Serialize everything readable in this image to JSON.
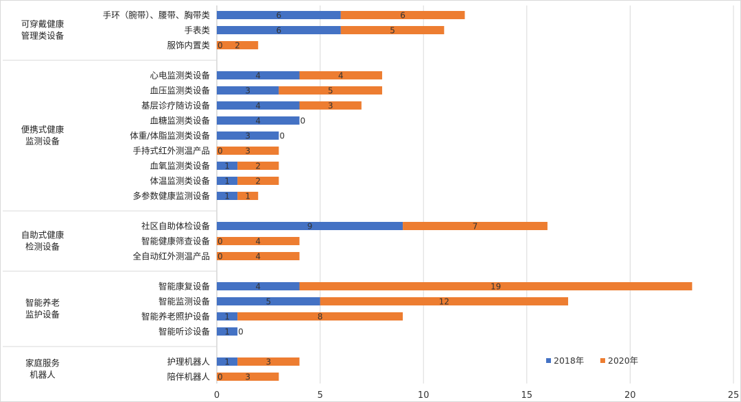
{
  "chart_data": {
    "type": "bar",
    "orientation": "horizontal",
    "stacked": true,
    "xlim": [
      0,
      25
    ],
    "x_ticks": [
      0,
      5,
      10,
      15,
      20,
      25
    ],
    "grid": "vertical",
    "legend_position": "bottom-right",
    "series": [
      {
        "name": "2018年",
        "color": "#4472C4"
      },
      {
        "name": "2020年",
        "color": "#ED7D31"
      }
    ],
    "groups": [
      {
        "label_lines": [
          "可穿戴健康",
          "管理类设备"
        ],
        "items": [
          {
            "label": "手环（腕带）、腰带、胸带类",
            "values": [
              6,
              6
            ]
          },
          {
            "label": "手表类",
            "values": [
              6,
              5
            ]
          },
          {
            "label": "服饰内置类",
            "values": [
              0,
              2
            ]
          }
        ]
      },
      {
        "label_lines": [
          "便携式健康",
          "监测设备"
        ],
        "items": [
          {
            "label": "心电监测类设备",
            "values": [
              4,
              4
            ]
          },
          {
            "label": "血压监测类设备",
            "values": [
              3,
              5
            ]
          },
          {
            "label": "基层诊疗随访设备",
            "values": [
              4,
              3
            ]
          },
          {
            "label": "血糖监测类设备",
            "values": [
              4,
              0
            ]
          },
          {
            "label": "体重/体脂监测类设备",
            "values": [
              3,
              0
            ]
          },
          {
            "label": "手持式红外测温产品",
            "values": [
              0,
              3
            ]
          },
          {
            "label": "血氧监测类设备",
            "values": [
              1,
              2
            ]
          },
          {
            "label": "体温监测类设备",
            "values": [
              1,
              2
            ]
          },
          {
            "label": "多参数健康监测设备",
            "values": [
              1,
              1
            ]
          }
        ]
      },
      {
        "label_lines": [
          "自助式健康",
          "检测设备"
        ],
        "items": [
          {
            "label": "社区自助体检设备",
            "values": [
              9,
              7
            ]
          },
          {
            "label": "智能健康筛查设备",
            "values": [
              0,
              4
            ]
          },
          {
            "label": "全自动红外测温产品",
            "values": [
              0,
              4
            ]
          }
        ]
      },
      {
        "label_lines": [
          "智能养老",
          "监护设备"
        ],
        "items": [
          {
            "label": "智能康复设备",
            "values": [
              4,
              19
            ]
          },
          {
            "label": "智能监测设备",
            "values": [
              5,
              12
            ]
          },
          {
            "label": "智能养老照护设备",
            "values": [
              1,
              8
            ]
          },
          {
            "label": "智能听诊设备",
            "values": [
              1,
              0
            ]
          }
        ]
      },
      {
        "label_lines": [
          "家庭服务",
          "机器人"
        ],
        "items": [
          {
            "label": "护理机器人",
            "values": [
              1,
              3
            ]
          },
          {
            "label": "陪伴机器人",
            "values": [
              0,
              3
            ]
          }
        ]
      }
    ]
  }
}
